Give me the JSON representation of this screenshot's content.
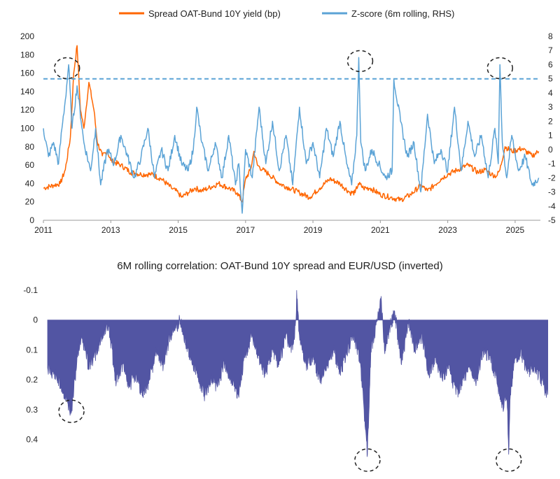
{
  "colors": {
    "spread": "#ff6600",
    "zscore": "#5ba3d6",
    "correlation": "#5255a3"
  },
  "chart_data": [
    {
      "type": "line",
      "legend_placement": "top",
      "x_range": [
        2011.0,
        2025.75
      ],
      "x_tick_labels": [
        "2011",
        "2013",
        "2015",
        "2017",
        "2019",
        "2021",
        "2023",
        "2025"
      ],
      "y_left": {
        "range": [
          0,
          200
        ],
        "ticks": [
          "0",
          "20",
          "40",
          "60",
          "80",
          "100",
          "120",
          "140",
          "160",
          "180",
          "200"
        ]
      },
      "y_right": {
        "range": [
          -5,
          8
        ],
        "ticks": [
          "-5",
          "-4",
          "-3",
          "-2",
          "-1",
          "0",
          "1",
          "2",
          "3",
          "4",
          "5",
          "6",
          "7",
          "8"
        ]
      },
      "grid": false,
      "reference_line": {
        "axis": "right",
        "value": 5,
        "style": "dashed"
      },
      "highlight_circles_x": [
        2011.7,
        2020.4,
        2024.55
      ],
      "series": [
        {
          "name": "Spread OAT-Bund 10Y yield (bp)",
          "axis": "left",
          "x": [
            2011.0,
            2011.3,
            2011.5,
            2011.65,
            2011.8,
            2011.9,
            2012.0,
            2012.1,
            2012.2,
            2012.35,
            2012.5,
            2012.6,
            2012.75,
            2012.9,
            2013.0,
            2013.3,
            2013.6,
            2013.9,
            2014.2,
            2014.5,
            2014.8,
            2015.0,
            2015.1,
            2015.3,
            2015.5,
            2015.7,
            2015.9,
            2016.2,
            2016.5,
            2016.75,
            2016.9,
            2017.0,
            2017.15,
            2017.25,
            2017.35,
            2017.5,
            2017.7,
            2018.0,
            2018.3,
            2018.6,
            2018.9,
            2019.2,
            2019.5,
            2019.8,
            2020.1,
            2020.25,
            2020.35,
            2020.5,
            2020.7,
            2021.0,
            2021.3,
            2021.6,
            2021.9,
            2022.2,
            2022.4,
            2022.6,
            2022.8,
            2023.0,
            2023.3,
            2023.6,
            2023.9,
            2024.1,
            2024.3,
            2024.45,
            2024.55,
            2024.7,
            2024.9,
            2025.2,
            2025.5,
            2025.7
          ],
          "y": [
            35,
            38,
            40,
            55,
            90,
            160,
            190,
            120,
            100,
            150,
            120,
            85,
            70,
            75,
            65,
            60,
            52,
            50,
            50,
            45,
            35,
            30,
            25,
            30,
            35,
            32,
            35,
            40,
            35,
            30,
            20,
            45,
            55,
            75,
            60,
            55,
            50,
            40,
            35,
            30,
            25,
            35,
            45,
            40,
            30,
            30,
            40,
            35,
            35,
            28,
            25,
            22,
            28,
            38,
            32,
            38,
            45,
            50,
            55,
            60,
            52,
            55,
            50,
            48,
            55,
            80,
            75,
            78,
            70,
            75
          ]
        },
        {
          "name": "Z-score (6m rolling, RHS)",
          "axis": "right",
          "x": [
            2011.0,
            2011.15,
            2011.3,
            2011.45,
            2011.55,
            2011.65,
            2011.75,
            2011.85,
            2012.0,
            2012.2,
            2012.4,
            2012.55,
            2012.7,
            2012.9,
            2013.1,
            2013.3,
            2013.5,
            2013.7,
            2013.9,
            2014.1,
            2014.3,
            2014.5,
            2014.7,
            2014.9,
            2015.1,
            2015.3,
            2015.45,
            2015.55,
            2015.7,
            2015.9,
            2016.1,
            2016.3,
            2016.5,
            2016.7,
            2016.8,
            2016.9,
            2017.0,
            2017.2,
            2017.4,
            2017.6,
            2017.8,
            2018.0,
            2018.2,
            2018.4,
            2018.6,
            2018.8,
            2019.0,
            2019.2,
            2019.4,
            2019.6,
            2019.8,
            2020.0,
            2020.15,
            2020.3,
            2020.36,
            2020.42,
            2020.55,
            2020.75,
            2020.95,
            2021.15,
            2021.35,
            2021.4,
            2021.6,
            2021.8,
            2022.0,
            2022.2,
            2022.4,
            2022.6,
            2022.8,
            2023.0,
            2023.2,
            2023.4,
            2023.6,
            2023.8,
            2024.0,
            2024.2,
            2024.4,
            2024.5,
            2024.55,
            2024.62,
            2024.75,
            2024.9,
            2025.1,
            2025.3,
            2025.5,
            2025.7
          ],
          "y": [
            1.5,
            -0.5,
            0.5,
            -1.0,
            1.5,
            3.5,
            6.0,
            1.5,
            4.5,
            0.5,
            -1.5,
            1.5,
            -2.5,
            0.0,
            -1.0,
            1.0,
            -0.5,
            -2.0,
            -0.5,
            1.5,
            -2.0,
            0.0,
            -1.5,
            1.0,
            -1.0,
            -1.5,
            0.0,
            3.0,
            0.5,
            -1.5,
            0.5,
            -2.0,
            1.0,
            -2.5,
            -1.0,
            -4.5,
            0.0,
            -2.0,
            3.0,
            -1.0,
            2.0,
            -1.5,
            1.0,
            -2.5,
            3.0,
            -1.0,
            0.5,
            -2.0,
            1.5,
            -0.5,
            2.0,
            -1.0,
            -2.5,
            1.0,
            6.5,
            0.5,
            -1.5,
            0.0,
            -1.0,
            -2.0,
            -1.5,
            5.0,
            2.0,
            -0.5,
            0.5,
            -3.0,
            2.5,
            -1.0,
            0.0,
            -1.5,
            3.0,
            -1.5,
            2.0,
            -0.5,
            1.0,
            -2.0,
            1.5,
            -1.0,
            6.0,
            0.5,
            -2.0,
            1.0,
            -1.5,
            -0.5,
            -2.5,
            -2.0
          ]
        }
      ]
    },
    {
      "type": "area",
      "title": "6M rolling correlation: OAT-Bund 10Y spread and EUR/USD (inverted)",
      "inverted": true,
      "y_range": [
        -0.1,
        0.45
      ],
      "y_ticks": [
        "-0.1",
        "0",
        "0.1",
        "0.2",
        "0.3",
        "0.4"
      ],
      "grid": false,
      "highlight_circles_x": [
        2011.7,
        2020.4,
        2024.55
      ],
      "series": [
        {
          "name": "6M rolling correlation",
          "x": [
            2011.0,
            2011.2,
            2011.4,
            2011.6,
            2011.7,
            2011.8,
            2011.9,
            2012.0,
            2012.2,
            2012.4,
            2012.6,
            2012.8,
            2013.0,
            2013.2,
            2013.4,
            2013.6,
            2013.8,
            2014.0,
            2014.2,
            2014.4,
            2014.6,
            2014.8,
            2014.9,
            2015.0,
            2015.2,
            2015.4,
            2015.6,
            2015.8,
            2016.0,
            2016.2,
            2016.4,
            2016.6,
            2016.8,
            2017.0,
            2017.2,
            2017.4,
            2017.6,
            2017.8,
            2018.0,
            2018.2,
            2018.3,
            2018.32,
            2018.4,
            2018.6,
            2018.8,
            2019.0,
            2019.2,
            2019.4,
            2019.6,
            2019.8,
            2020.0,
            2020.2,
            2020.3,
            2020.4,
            2020.5,
            2020.7,
            2020.8,
            2020.9,
            2021.0,
            2021.2,
            2021.4,
            2021.6,
            2021.8,
            2022.0,
            2022.2,
            2022.4,
            2022.6,
            2022.8,
            2023.0,
            2023.2,
            2023.4,
            2023.6,
            2023.8,
            2024.0,
            2024.2,
            2024.4,
            2024.5,
            2024.55,
            2024.6,
            2024.7,
            2024.9,
            2025.1,
            2025.3,
            2025.5,
            2025.7
          ],
          "y": [
            0.16,
            0.18,
            0.22,
            0.28,
            0.31,
            0.2,
            0.1,
            0.05,
            0.15,
            0.12,
            0.05,
            0.02,
            0.2,
            0.15,
            0.22,
            0.18,
            0.25,
            0.2,
            0.1,
            0.15,
            0.05,
            0.02,
            0.0,
            0.05,
            0.12,
            0.18,
            0.25,
            0.2,
            0.22,
            0.14,
            0.2,
            0.25,
            0.12,
            0.05,
            0.12,
            0.18,
            0.1,
            0.15,
            0.05,
            0.1,
            0.0,
            -0.1,
            0.05,
            0.15,
            0.12,
            0.2,
            0.15,
            0.1,
            0.18,
            0.1,
            0.05,
            0.15,
            0.3,
            0.45,
            0.1,
            0.0,
            -0.08,
            0.1,
            0.05,
            -0.03,
            0.15,
            0.0,
            0.1,
            0.05,
            0.18,
            0.12,
            0.2,
            0.15,
            0.25,
            0.2,
            0.15,
            0.2,
            0.1,
            0.12,
            0.2,
            0.3,
            0.25,
            0.45,
            0.25,
            0.15,
            0.1,
            0.18,
            0.15,
            0.2,
            0.25
          ]
        }
      ]
    }
  ]
}
